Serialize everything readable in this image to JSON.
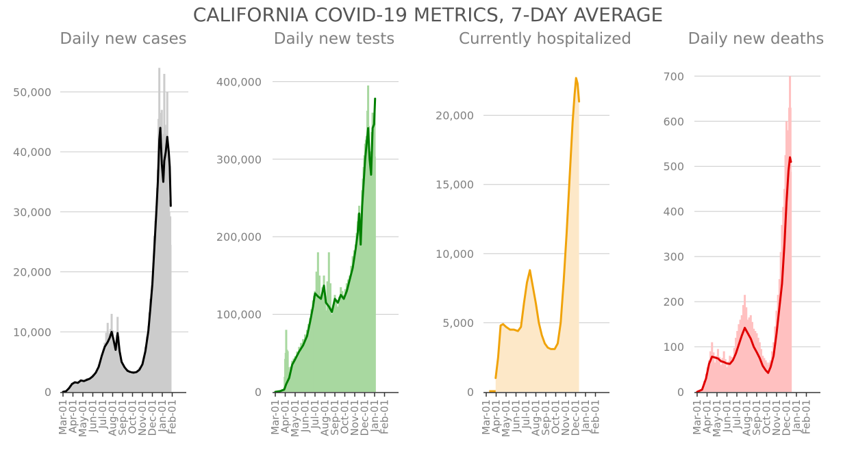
{
  "title": "CALIFORNIA COVID-19 METRICS, 7-DAY AVERAGE",
  "colors": {
    "title": "#555555",
    "subtitle": "#808080",
    "tick": "#808080",
    "grid": "#c8c8c8",
    "axis": "#333333"
  },
  "chart_data": [
    {
      "type": "bar",
      "title": "Daily new cases",
      "xlabel": "",
      "ylabel": "",
      "ylim": [
        0,
        53000
      ],
      "yticks": [
        0,
        10000,
        20000,
        30000,
        40000,
        50000
      ],
      "ytick_labels": [
        "0",
        "10,000",
        "20,000",
        "30,000",
        "40,000",
        "50,000"
      ],
      "xticks": [
        "Mar-01",
        "Apr-01",
        "May-01",
        "Jun-01",
        "Jul-01",
        "Aug-01",
        "Sep-01",
        "Oct-01",
        "Nov-01",
        "Dec-01",
        "Jan-01",
        "Feb-01"
      ],
      "x_range": [
        0,
        12
      ],
      "grid": true,
      "line_color": "#000000",
      "fill_color": "#cccccc",
      "fill_style": "bars",
      "line": [
        [
          0,
          0
        ],
        [
          0.3,
          100
        ],
        [
          0.6,
          600
        ],
        [
          0.9,
          1300
        ],
        [
          1.2,
          1600
        ],
        [
          1.5,
          1500
        ],
        [
          1.8,
          1900
        ],
        [
          2.1,
          1800
        ],
        [
          2.4,
          2000
        ],
        [
          2.7,
          2200
        ],
        [
          3.0,
          2600
        ],
        [
          3.3,
          3200
        ],
        [
          3.6,
          4200
        ],
        [
          3.9,
          6000
        ],
        [
          4.2,
          7500
        ],
        [
          4.5,
          8300
        ],
        [
          4.7,
          9000
        ],
        [
          4.9,
          10000
        ],
        [
          5.1,
          8600
        ],
        [
          5.3,
          7000
        ],
        [
          5.5,
          9800
        ],
        [
          5.7,
          6800
        ],
        [
          5.9,
          5000
        ],
        [
          6.2,
          4100
        ],
        [
          6.5,
          3500
        ],
        [
          6.8,
          3300
        ],
        [
          7.1,
          3200
        ],
        [
          7.4,
          3300
        ],
        [
          7.7,
          3700
        ],
        [
          8.0,
          4600
        ],
        [
          8.3,
          6800
        ],
        [
          8.6,
          10200
        ],
        [
          8.8,
          14000
        ],
        [
          9.0,
          18000
        ],
        [
          9.2,
          24000
        ],
        [
          9.4,
          30000
        ],
        [
          9.55,
          35000
        ],
        [
          9.7,
          42000
        ],
        [
          9.8,
          44000
        ],
        [
          9.95,
          38000
        ],
        [
          10.1,
          35000
        ],
        [
          10.2,
          38500
        ],
        [
          10.35,
          40000
        ],
        [
          10.5,
          42500
        ],
        [
          10.65,
          40000
        ],
        [
          10.75,
          37500
        ],
        [
          10.85,
          31000
        ]
      ],
      "bars": [
        [
          0,
          0
        ],
        [
          0.3,
          150
        ],
        [
          0.6,
          700
        ],
        [
          0.9,
          1500
        ],
        [
          1.2,
          1700
        ],
        [
          1.5,
          1400
        ],
        [
          1.8,
          2100
        ],
        [
          2.1,
          1700
        ],
        [
          2.4,
          2300
        ],
        [
          2.7,
          2000
        ],
        [
          3.0,
          2900
        ],
        [
          3.3,
          3000
        ],
        [
          3.6,
          4600
        ],
        [
          3.9,
          5800
        ],
        [
          4.2,
          8200
        ],
        [
          4.5,
          11500
        ],
        [
          4.7,
          8000
        ],
        [
          4.9,
          13000
        ],
        [
          5.1,
          7500
        ],
        [
          5.3,
          6500
        ],
        [
          5.5,
          12500
        ],
        [
          5.7,
          6000
        ],
        [
          5.9,
          5300
        ],
        [
          6.2,
          3800
        ],
        [
          6.5,
          3800
        ],
        [
          6.8,
          3000
        ],
        [
          7.1,
          3500
        ],
        [
          7.4,
          3100
        ],
        [
          7.7,
          4100
        ],
        [
          8.0,
          4300
        ],
        [
          8.3,
          7500
        ],
        [
          8.6,
          11000
        ],
        [
          8.8,
          15500
        ],
        [
          9.0,
          17000
        ],
        [
          9.2,
          26000
        ],
        [
          9.4,
          31000
        ],
        [
          9.55,
          37000
        ],
        [
          9.7,
          54000
        ],
        [
          9.8,
          39000
        ],
        [
          9.95,
          47000
        ],
        [
          10.1,
          33000
        ],
        [
          10.2,
          53000
        ],
        [
          10.35,
          36000
        ],
        [
          10.5,
          50000
        ],
        [
          10.65,
          32000
        ],
        [
          10.75,
          28000
        ],
        [
          10.85,
          30500
        ]
      ]
    },
    {
      "type": "bar",
      "title": "Daily new tests",
      "xlabel": "",
      "ylabel": "",
      "ylim": [
        0,
        410000
      ],
      "yticks": [
        0,
        100000,
        200000,
        300000,
        400000
      ],
      "ytick_labels": [
        "0",
        "100,000",
        "200,000",
        "300,000",
        "400,000"
      ],
      "xticks": [
        "Mar-01",
        "Apr-01",
        "May-01",
        "Jun-01",
        "Jul-01",
        "Aug-01",
        "Sep-01",
        "Oct-01",
        "Nov-01",
        "Dec-01",
        "Jan-01",
        "Feb-01"
      ],
      "x_range": [
        0,
        12
      ],
      "grid": true,
      "line_color": "#008000",
      "fill_color": "#a8d8a0",
      "fill_style": "bars",
      "line": [
        [
          0,
          0
        ],
        [
          0.5,
          1000
        ],
        [
          0.9,
          3000
        ],
        [
          1.1,
          10000
        ],
        [
          1.4,
          18000
        ],
        [
          1.7,
          35000
        ],
        [
          2.0,
          42000
        ],
        [
          2.4,
          52000
        ],
        [
          2.8,
          60000
        ],
        [
          3.2,
          72000
        ],
        [
          3.5,
          90000
        ],
        [
          3.8,
          110000
        ],
        [
          4.0,
          127000
        ],
        [
          4.3,
          123000
        ],
        [
          4.6,
          120000
        ],
        [
          4.9,
          137000
        ],
        [
          5.1,
          115000
        ],
        [
          5.4,
          110000
        ],
        [
          5.7,
          103000
        ],
        [
          6.0,
          120000
        ],
        [
          6.3,
          115000
        ],
        [
          6.6,
          125000
        ],
        [
          6.9,
          120000
        ],
        [
          7.2,
          130000
        ],
        [
          7.5,
          145000
        ],
        [
          7.8,
          160000
        ],
        [
          8.1,
          185000
        ],
        [
          8.3,
          205000
        ],
        [
          8.45,
          230000
        ],
        [
          8.6,
          190000
        ],
        [
          8.75,
          240000
        ],
        [
          8.9,
          270000
        ],
        [
          9.05,
          300000
        ],
        [
          9.2,
          320000
        ],
        [
          9.35,
          340000
        ],
        [
          9.5,
          300000
        ],
        [
          9.65,
          280000
        ],
        [
          9.8,
          340000
        ],
        [
          9.95,
          345000
        ],
        [
          10.05,
          378000
        ]
      ],
      "bars": [
        [
          0,
          0
        ],
        [
          0.5,
          2000
        ],
        [
          0.9,
          5000
        ],
        [
          1.1,
          80000
        ],
        [
          1.4,
          25000
        ],
        [
          1.7,
          40000
        ],
        [
          2.0,
          46000
        ],
        [
          2.4,
          58000
        ],
        [
          2.8,
          68000
        ],
        [
          3.2,
          80000
        ],
        [
          3.5,
          95000
        ],
        [
          3.8,
          118000
        ],
        [
          4.0,
          130000
        ],
        [
          4.3,
          180000
        ],
        [
          4.6,
          120000
        ],
        [
          4.9,
          150000
        ],
        [
          5.1,
          105000
        ],
        [
          5.4,
          180000
        ],
        [
          5.7,
          100000
        ],
        [
          6.0,
          125000
        ],
        [
          6.3,
          110000
        ],
        [
          6.6,
          135000
        ],
        [
          6.9,
          125000
        ],
        [
          7.2,
          140000
        ],
        [
          7.5,
          150000
        ],
        [
          7.8,
          175000
        ],
        [
          8.1,
          190000
        ],
        [
          8.3,
          220000
        ],
        [
          8.45,
          240000
        ],
        [
          8.6,
          200000
        ],
        [
          8.75,
          260000
        ],
        [
          8.9,
          290000
        ],
        [
          9.05,
          320000
        ],
        [
          9.2,
          330000
        ],
        [
          9.35,
          395000
        ],
        [
          9.5,
          290000
        ],
        [
          9.65,
          310000
        ],
        [
          9.8,
          360000
        ],
        [
          9.95,
          340000
        ],
        [
          10.05,
          380000
        ]
      ]
    },
    {
      "type": "area",
      "title": "Currently hospitalized",
      "xlabel": "",
      "ylabel": "",
      "ylim": [
        0,
        23000
      ],
      "yticks": [
        0,
        5000,
        10000,
        15000,
        20000
      ],
      "ytick_labels": [
        "0",
        "5,000",
        "10,000",
        "15,000",
        "20,000"
      ],
      "xticks": [
        "Mar-01",
        "Apr-01",
        "May-01",
        "Jun-01",
        "Jul-01",
        "Aug-01",
        "Sep-01",
        "Oct-01",
        "Nov-01",
        "Dec-01",
        "Jan-01",
        "Feb-01"
      ],
      "x_range": [
        0,
        12
      ],
      "grid": true,
      "line_color": "#f0a30a",
      "fill_color": "#fde8c8",
      "fill_style": "area",
      "line": [
        [
          0.95,
          1000
        ],
        [
          1.2,
          2500
        ],
        [
          1.45,
          4800
        ],
        [
          1.7,
          4900
        ],
        [
          2.0,
          4700
        ],
        [
          2.4,
          4500
        ],
        [
          2.8,
          4500
        ],
        [
          3.2,
          4400
        ],
        [
          3.5,
          4700
        ],
        [
          3.8,
          6400
        ],
        [
          4.1,
          7900
        ],
        [
          4.4,
          8800
        ],
        [
          4.7,
          7600
        ],
        [
          5.0,
          6400
        ],
        [
          5.3,
          5000
        ],
        [
          5.6,
          4100
        ],
        [
          5.9,
          3500
        ],
        [
          6.2,
          3200
        ],
        [
          6.5,
          3100
        ],
        [
          6.9,
          3100
        ],
        [
          7.2,
          3500
        ],
        [
          7.5,
          5000
        ],
        [
          7.8,
          8000
        ],
        [
          8.1,
          11500
        ],
        [
          8.4,
          15500
        ],
        [
          8.7,
          19500
        ],
        [
          8.9,
          21500
        ],
        [
          9.05,
          22700
        ],
        [
          9.2,
          22300
        ],
        [
          9.35,
          21000
        ]
      ]
    },
    {
      "type": "bar",
      "title": "Daily new deaths",
      "xlabel": "",
      "ylabel": "",
      "ylim": [
        0,
        705
      ],
      "yticks": [
        0,
        100,
        200,
        300,
        400,
        500,
        600,
        700
      ],
      "ytick_labels": [
        "0",
        "100",
        "200",
        "300",
        "400",
        "500",
        "600",
        "700"
      ],
      "xticks": [
        "Mar-01",
        "Apr-01",
        "May-01",
        "Jun-01",
        "Jul-01",
        "Aug-01",
        "Sep-01",
        "Oct-01",
        "Nov-01",
        "Dec-01",
        "Jan-01",
        "Feb-01"
      ],
      "x_range": [
        0,
        12
      ],
      "grid": true,
      "line_color": "#e00000",
      "fill_color": "#ffc0c0",
      "fill_style": "bars",
      "line": [
        [
          0,
          0
        ],
        [
          0.5,
          5
        ],
        [
          0.9,
          30
        ],
        [
          1.2,
          62
        ],
        [
          1.5,
          78
        ],
        [
          1.8,
          76
        ],
        [
          2.1,
          74
        ],
        [
          2.4,
          68
        ],
        [
          2.7,
          66
        ],
        [
          3.0,
          63
        ],
        [
          3.3,
          62
        ],
        [
          3.6,
          70
        ],
        [
          3.9,
          85
        ],
        [
          4.2,
          105
        ],
        [
          4.5,
          125
        ],
        [
          4.8,
          142
        ],
        [
          5.1,
          130
        ],
        [
          5.4,
          118
        ],
        [
          5.7,
          100
        ],
        [
          6.0,
          88
        ],
        [
          6.3,
          75
        ],
        [
          6.6,
          58
        ],
        [
          6.9,
          48
        ],
        [
          7.15,
          42
        ],
        [
          7.4,
          55
        ],
        [
          7.7,
          80
        ],
        [
          8.0,
          130
        ],
        [
          8.3,
          190
        ],
        [
          8.55,
          240
        ],
        [
          8.8,
          330
        ],
        [
          9.0,
          420
        ],
        [
          9.2,
          490
        ],
        [
          9.35,
          520
        ],
        [
          9.45,
          510
        ]
      ],
      "bars": [
        [
          0,
          0
        ],
        [
          0.5,
          8
        ],
        [
          0.9,
          40
        ],
        [
          1.2,
          70
        ],
        [
          1.5,
          110
        ],
        [
          1.8,
          65
        ],
        [
          2.1,
          95
        ],
        [
          2.4,
          60
        ],
        [
          2.7,
          90
        ],
        [
          3.0,
          55
        ],
        [
          3.3,
          80
        ],
        [
          3.6,
          75
        ],
        [
          3.9,
          120
        ],
        [
          4.2,
          150
        ],
        [
          4.5,
          170
        ],
        [
          4.8,
          215
        ],
        [
          5.1,
          160
        ],
        [
          5.4,
          170
        ],
        [
          5.7,
          140
        ],
        [
          6.0,
          130
        ],
        [
          6.3,
          110
        ],
        [
          6.6,
          80
        ],
        [
          6.9,
          70
        ],
        [
          7.15,
          60
        ],
        [
          7.4,
          70
        ],
        [
          7.7,
          110
        ],
        [
          8.0,
          180
        ],
        [
          8.3,
          250
        ],
        [
          8.55,
          370
        ],
        [
          8.8,
          450
        ],
        [
          9.0,
          600
        ],
        [
          9.2,
          560
        ],
        [
          9.35,
          700
        ],
        [
          9.45,
          560
        ]
      ]
    }
  ]
}
